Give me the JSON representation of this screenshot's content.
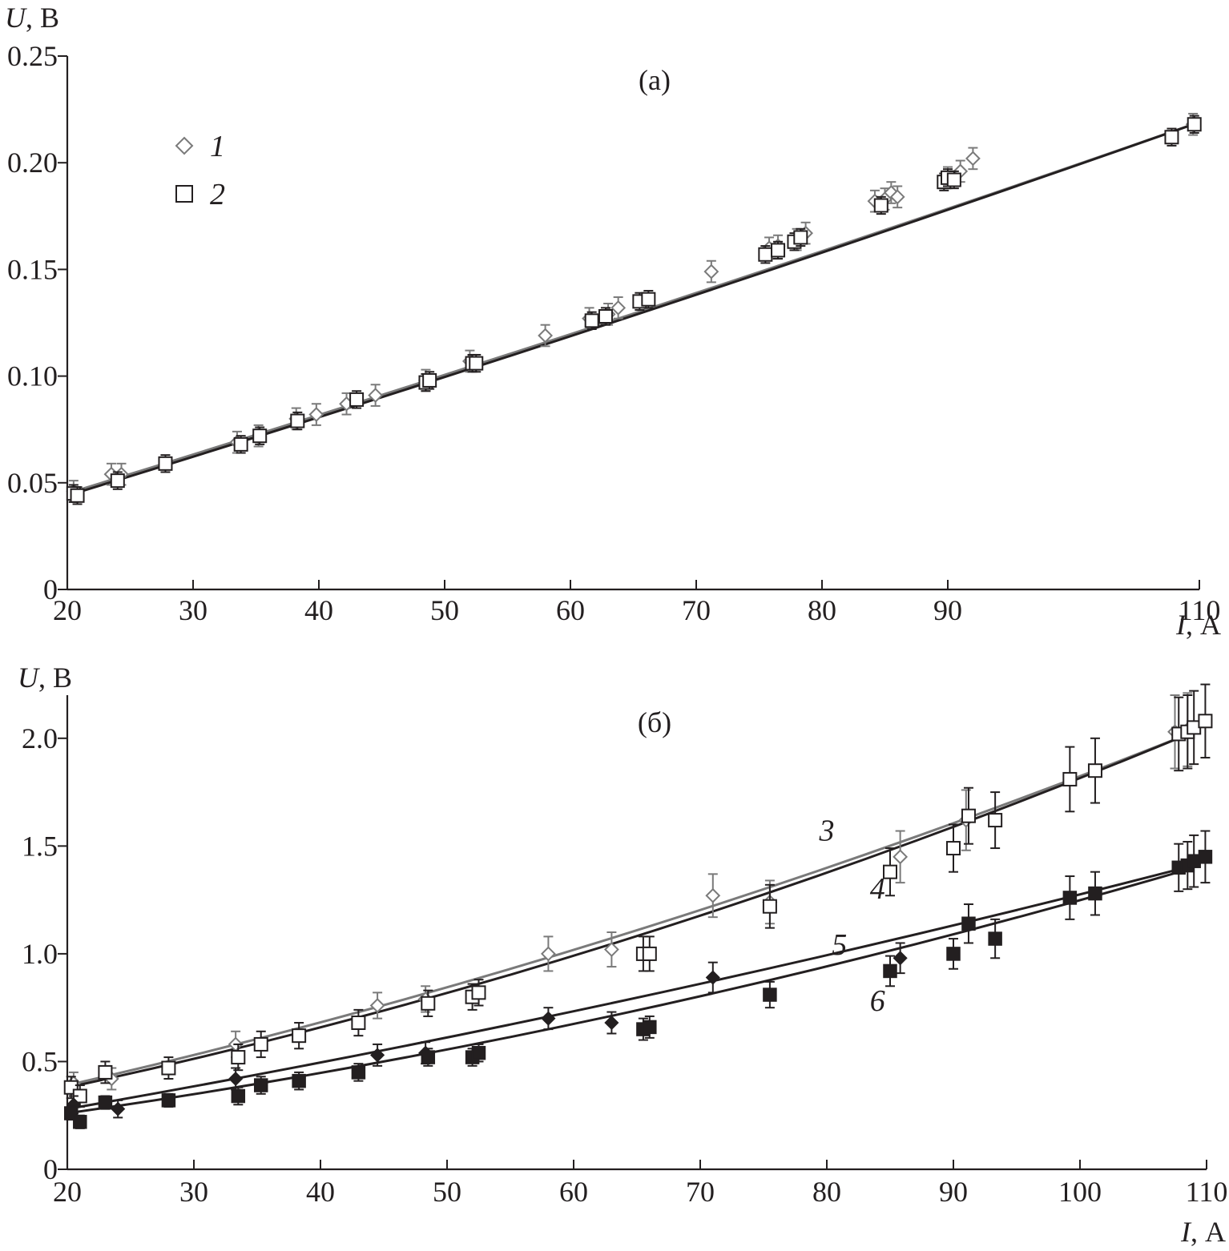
{
  "colors": {
    "ink": "#231f20",
    "gray": "#7a7a7a",
    "background": "#ffffff"
  },
  "chart_data": [
    {
      "id": "a",
      "type": "scatter",
      "panel_label": "(а)",
      "xlabel_var": "I",
      "xlabel_unit": ", А",
      "ylabel_var": "U",
      "ylabel_unit": ", В",
      "xlim": [
        20,
        110
      ],
      "ylim": [
        0,
        0.25
      ],
      "xticks": [
        20,
        30,
        40,
        50,
        60,
        70,
        80,
        90,
        110
      ],
      "xtick_labels": [
        "20",
        "30",
        "40",
        "50",
        "60",
        "70",
        "80",
        "90",
        "110"
      ],
      "yticks": [
        0,
        0.05,
        0.1,
        0.15,
        0.2,
        0.25
      ],
      "ytick_labels": [
        "0",
        "0.05",
        "0.10",
        "0.15",
        "0.20",
        "0.25"
      ],
      "legend": [
        {
          "label": "1",
          "marker": "diamond-open",
          "color": "#7a7a7a"
        },
        {
          "label": "2",
          "marker": "square-open",
          "color": "#231f20"
        }
      ],
      "legend_position": "top-left",
      "series": [
        {
          "name": "1",
          "marker": "diamond-open",
          "color": "#7a7a7a",
          "err": 0.005,
          "x": [
            20.5,
            23.5,
            24.3,
            33.5,
            35.2,
            38.2,
            39.8,
            42.2,
            44.5,
            48.5,
            52.0,
            58.0,
            61.5,
            63.0,
            63.8,
            71.2,
            75.8,
            76.5,
            78.0,
            78.7,
            84.2,
            85.0,
            85.5,
            86.0,
            90.0,
            91.0,
            92.0,
            109.5
          ],
          "y": [
            0.046,
            0.054,
            0.054,
            0.069,
            0.072,
            0.08,
            0.082,
            0.087,
            0.091,
            0.098,
            0.107,
            0.119,
            0.127,
            0.129,
            0.132,
            0.149,
            0.16,
            0.161,
            0.164,
            0.167,
            0.182,
            0.183,
            0.186,
            0.184,
            0.193,
            0.196,
            0.202,
            0.218
          ],
          "fit": {
            "x": [
              20,
              110
            ],
            "y": [
              0.045,
              0.219
            ],
            "curvature": 0.022
          }
        },
        {
          "name": "2",
          "marker": "square-open",
          "color": "#231f20",
          "err": 0.004,
          "x": [
            20.5,
            20.8,
            24.0,
            27.8,
            33.8,
            35.3,
            38.3,
            43.0,
            48.5,
            48.8,
            52.2,
            52.5,
            61.7,
            62.8,
            65.5,
            66.2,
            75.5,
            76.5,
            77.8,
            78.3,
            84.7,
            89.7,
            90.0,
            90.5,
            107.8,
            109.6
          ],
          "y": [
            0.045,
            0.044,
            0.051,
            0.059,
            0.068,
            0.072,
            0.079,
            0.089,
            0.097,
            0.098,
            0.106,
            0.106,
            0.126,
            0.128,
            0.135,
            0.136,
            0.157,
            0.159,
            0.163,
            0.165,
            0.18,
            0.191,
            0.193,
            0.192,
            0.212,
            0.218
          ],
          "fit": {
            "x": [
              20,
              110
            ],
            "y": [
              0.044,
              0.219
            ],
            "curvature": 0.025
          }
        }
      ],
      "annotations": []
    },
    {
      "id": "b",
      "type": "scatter",
      "panel_label": "(б)",
      "xlabel_var": "I",
      "xlabel_unit": ", А",
      "ylabel_var": "U",
      "ylabel_unit": ", В",
      "xlim": [
        20,
        110
      ],
      "ylim": [
        0,
        2.2
      ],
      "xticks": [
        20,
        30,
        40,
        50,
        60,
        70,
        80,
        90,
        100,
        110
      ],
      "xtick_labels": [
        "20",
        "30",
        "40",
        "50",
        "60",
        "70",
        "80",
        "90",
        "100",
        "110"
      ],
      "yticks": [
        0,
        0.5,
        1.0,
        1.5,
        2.0
      ],
      "ytick_labels": [
        "0",
        "0.5",
        "1.0",
        "1.5",
        "2.0"
      ],
      "series": [
        {
          "name": "3",
          "marker": "diamond-open",
          "color": "#7a7a7a",
          "x": [
            20.5,
            23.5,
            33.3,
            44.5,
            48.3,
            58.0,
            63.0,
            71.0,
            75.5,
            85.8,
            91.0,
            107.5,
            108.5
          ],
          "y": [
            0.4,
            0.42,
            0.58,
            0.76,
            0.79,
            1.0,
            1.02,
            1.27,
            1.24,
            1.45,
            1.62,
            2.03,
            2.04
          ],
          "err": [
            0.05,
            0.05,
            0.06,
            0.06,
            0.06,
            0.08,
            0.08,
            0.1,
            0.1,
            0.12,
            0.14,
            0.17,
            0.17
          ],
          "fit": {
            "x": [
              20,
              109
            ],
            "y": [
              0.39,
              2.03
            ],
            "curvature": 0.1
          }
        },
        {
          "name": "4",
          "marker": "square-open",
          "color": "#231f20",
          "x": [
            20.3,
            21.0,
            23.0,
            28.0,
            33.5,
            35.3,
            38.3,
            43.0,
            48.5,
            52.0,
            52.5,
            65.5,
            66.0,
            75.5,
            85.0,
            90.0,
            91.2,
            93.3,
            99.2,
            101.2,
            107.8,
            108.5,
            109.0,
            109.9
          ],
          "y": [
            0.38,
            0.34,
            0.45,
            0.47,
            0.52,
            0.58,
            0.62,
            0.68,
            0.77,
            0.8,
            0.82,
            1.0,
            1.0,
            1.22,
            1.38,
            1.49,
            1.64,
            1.62,
            1.81,
            1.85,
            2.02,
            2.03,
            2.05,
            2.08
          ],
          "err": [
            0.05,
            0.05,
            0.05,
            0.05,
            0.06,
            0.06,
            0.06,
            0.06,
            0.06,
            0.06,
            0.06,
            0.08,
            0.08,
            0.1,
            0.11,
            0.11,
            0.13,
            0.13,
            0.15,
            0.15,
            0.17,
            0.17,
            0.17,
            0.17
          ],
          "fit": {
            "x": [
              20,
              109
            ],
            "y": [
              0.38,
              2.03
            ],
            "curvature": 0.12
          }
        },
        {
          "name": "5",
          "marker": "diamond-filled",
          "color": "#231f20",
          "x": [
            20.5,
            24.0,
            33.3,
            44.5,
            48.3,
            58.0,
            63.0,
            71.0,
            85.8
          ],
          "y": [
            0.3,
            0.28,
            0.42,
            0.53,
            0.54,
            0.7,
            0.68,
            0.89,
            0.98
          ],
          "err": [
            0.04,
            0.04,
            0.05,
            0.05,
            0.05,
            0.05,
            0.05,
            0.07,
            0.07
          ],
          "fit": {
            "x": [
              20,
              109
            ],
            "y": [
              0.28,
              1.41
            ],
            "curvature": 0.05
          }
        },
        {
          "name": "6",
          "marker": "square-filled",
          "color": "#231f20",
          "x": [
            20.3,
            21.0,
            23.0,
            28.0,
            33.5,
            35.3,
            38.3,
            43.0,
            48.5,
            52.0,
            52.5,
            65.5,
            66.0,
            75.5,
            85.0,
            90.0,
            91.2,
            93.3,
            99.2,
            101.2,
            107.8,
            108.5,
            109.0,
            109.9
          ],
          "y": [
            0.26,
            0.22,
            0.31,
            0.32,
            0.34,
            0.39,
            0.41,
            0.45,
            0.52,
            0.52,
            0.54,
            0.65,
            0.66,
            0.81,
            0.92,
            1.0,
            1.14,
            1.07,
            1.26,
            1.28,
            1.4,
            1.41,
            1.43,
            1.45
          ],
          "err": [
            0.03,
            0.03,
            0.03,
            0.03,
            0.04,
            0.04,
            0.04,
            0.04,
            0.04,
            0.04,
            0.04,
            0.05,
            0.05,
            0.06,
            0.07,
            0.07,
            0.09,
            0.09,
            0.1,
            0.1,
            0.11,
            0.11,
            0.12,
            0.12
          ],
          "fit": {
            "x": [
              20,
              109
            ],
            "y": [
              0.26,
              1.4
            ],
            "curvature": 0.09
          }
        }
      ],
      "annotations": [
        {
          "text": "3",
          "x": 80,
          "y": 1.57
        },
        {
          "text": "4",
          "x": 84,
          "y": 1.3
        },
        {
          "text": "5",
          "x": 81,
          "y": 1.04
        },
        {
          "text": "6",
          "x": 84,
          "y": 0.78
        }
      ]
    }
  ]
}
